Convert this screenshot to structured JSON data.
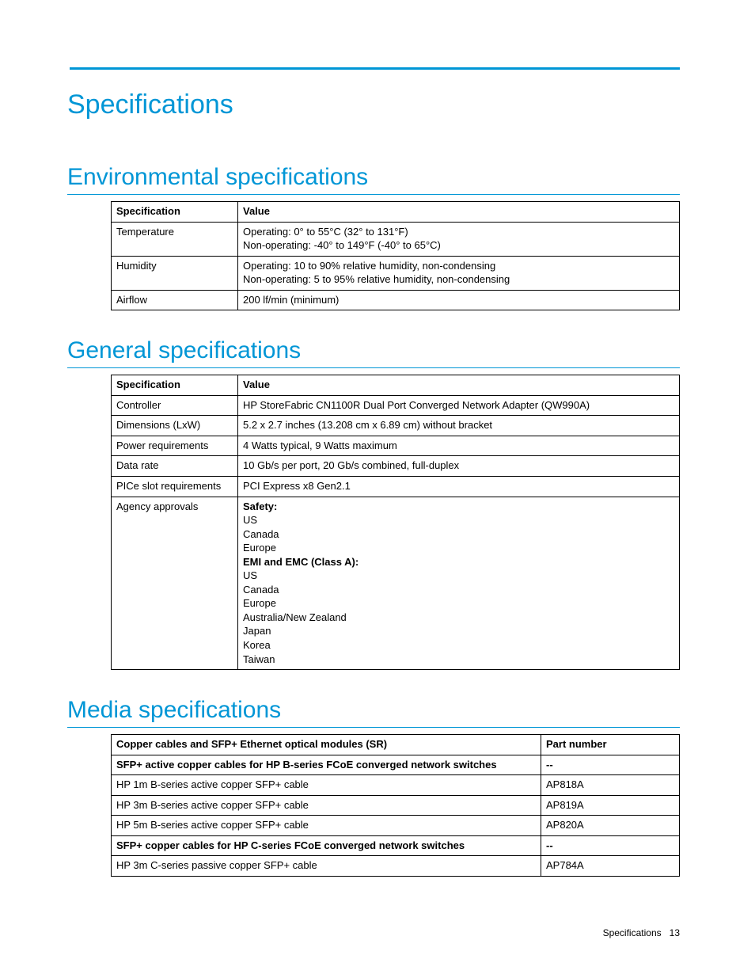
{
  "colors": {
    "accent": "#0096d6",
    "text": "#000000",
    "background": "#ffffff",
    "border": "#000000"
  },
  "typography": {
    "chapter_fontsize": 34,
    "section_fontsize": 30,
    "body_fontsize": 13
  },
  "chapter_title": "Specifications",
  "env": {
    "heading": "Environmental specifications",
    "header_spec": "Specification",
    "header_value": "Value",
    "rows": [
      {
        "spec": "Temperature",
        "value_line1": "Operating: 0° to 55°C (32° to 131°F)",
        "value_line2": "Non-operating: -40° to 149°F (-40° to 65°C)"
      },
      {
        "spec": "Humidity",
        "value_line1": "Operating: 10 to 90% relative humidity, non-condensing",
        "value_line2": "Non-operating: 5 to 95% relative humidity, non-condensing"
      },
      {
        "spec": "Airflow",
        "value_line1": "200 lf/min (minimum)",
        "value_line2": ""
      }
    ]
  },
  "general": {
    "heading": "General specifications",
    "header_spec": "Specification",
    "header_value": "Value",
    "controller_spec": "Controller",
    "controller_val": "HP StoreFabric CN1100R Dual Port Converged Network Adapter (QW990A)",
    "dimensions_spec": "Dimensions (LxW)",
    "dimensions_val": "5.2 x 2.7 inches (13.208 cm x 6.89 cm) without bracket",
    "power_spec": "Power requirements",
    "power_val": "4 Watts typical, 9 Watts maximum",
    "datarate_spec": "Data rate",
    "datarate_val": "10 Gb/s per port, 20 Gb/s combined, full-duplex",
    "pcie_spec": "PICe slot requirements",
    "pcie_val": "PCI Express x8 Gen2.1",
    "agency_spec": "Agency approvals",
    "agency": {
      "safety_label": "Safety:",
      "safety_items": [
        "US",
        "Canada",
        "Europe"
      ],
      "emi_label": "EMI and EMC (Class A):",
      "emi_items": [
        "US",
        "Canada",
        "Europe",
        "Australia/New Zealand",
        "Japan",
        "Korea",
        "Taiwan"
      ]
    }
  },
  "media": {
    "heading": "Media specifications",
    "header_desc": "Copper cables and SFP+ Ethernet optical modules (SR)",
    "header_part": "Part number",
    "rows": [
      {
        "desc": "SFP+ active copper cables for HP B-series FCoE converged network switches",
        "part": "--",
        "bold": true
      },
      {
        "desc": "HP 1m B-series active copper SFP+ cable",
        "part": "AP818A",
        "bold": false
      },
      {
        "desc": "HP 3m B-series active copper SFP+ cable",
        "part": "AP819A",
        "bold": false
      },
      {
        "desc": "HP 5m B-series active copper SFP+ cable",
        "part": "AP820A",
        "bold": false
      },
      {
        "desc": "SFP+ copper cables for HP C-series FCoE converged network switches",
        "part": "--",
        "bold": true
      },
      {
        "desc": "HP 3m C-series passive copper SFP+ cable",
        "part": "AP784A",
        "bold": false
      }
    ]
  },
  "footer": {
    "label": "Specifications",
    "page": "13"
  }
}
